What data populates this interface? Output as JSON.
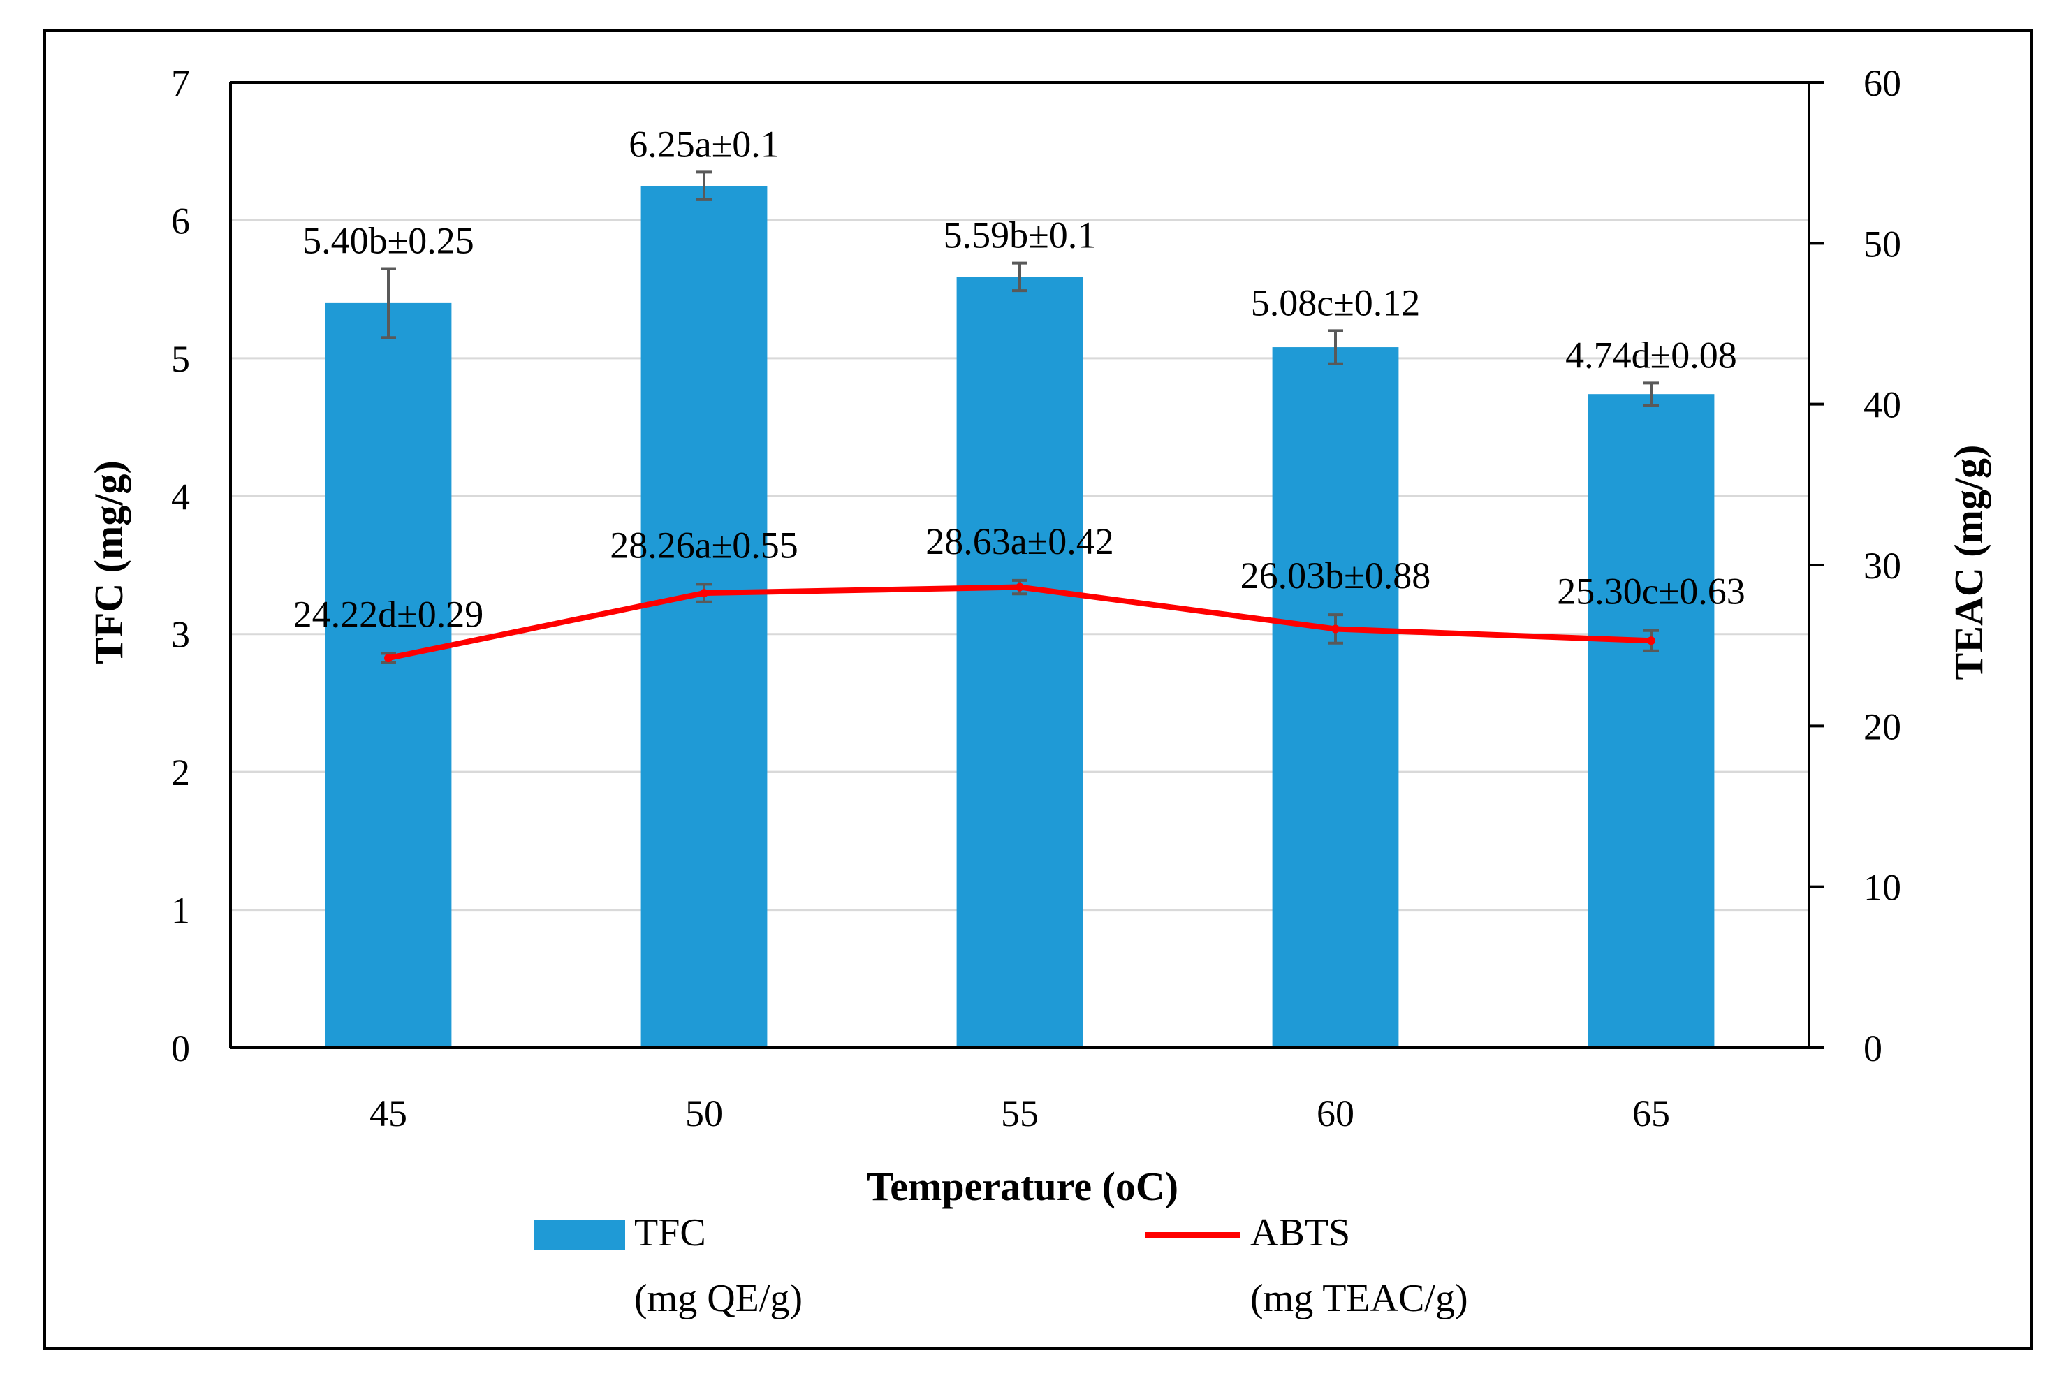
{
  "chart_data": {
    "type": "bar+line",
    "categories": [
      "45",
      "50",
      "55",
      "60",
      "65"
    ],
    "series": [
      {
        "name": "TFC",
        "legend_lines": [
          "TFC",
          "(mg QE/g)"
        ],
        "kind": "bar",
        "axis": "left",
        "color": "#1F9AD6",
        "values": [
          5.4,
          6.25,
          5.59,
          5.08,
          4.74
        ],
        "errors": [
          0.25,
          0.1,
          0.1,
          0.12,
          0.08
        ],
        "labels": [
          "5.40b±0.25",
          "6.25a±0.1",
          "5.59b±0.1",
          "5.08c±0.12",
          "4.74d±0.08"
        ]
      },
      {
        "name": "ABTS",
        "legend_lines": [
          "ABTS",
          "(mg TEAC/g)"
        ],
        "kind": "line",
        "axis": "right",
        "color": "#FF0000",
        "values": [
          24.22,
          28.26,
          28.63,
          26.03,
          25.3
        ],
        "errors": [
          0.29,
          0.55,
          0.42,
          0.88,
          0.63
        ],
        "labels": [
          "24.22d±0.29",
          "28.26a±0.55",
          "28.63a±0.42",
          "26.03b±0.88",
          "25.30c±0.63"
        ]
      }
    ],
    "xlabel": "Temperature (oC)",
    "ylabel_left": "TFC (mg/g)",
    "ylabel_right": "TEAC (mg/g)",
    "ylim_left": [
      0,
      7
    ],
    "yticks_left": [
      0,
      1,
      2,
      3,
      4,
      5,
      6,
      7
    ],
    "ylim_right": [
      0,
      60
    ],
    "yticks_right": [
      0,
      10,
      20,
      30,
      40,
      50,
      60
    ],
    "grid": true,
    "legend_position": "bottom"
  }
}
